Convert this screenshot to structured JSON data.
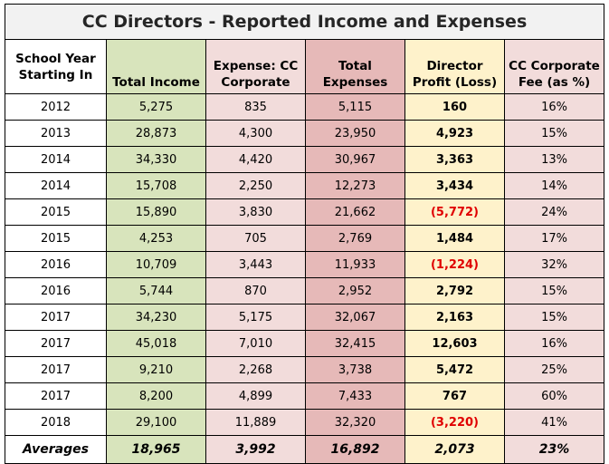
{
  "title": "CC Directors - Reported Income and Expenses",
  "headers": [
    "School Year Starting In",
    "Total Income",
    "Expense: CC Corporate",
    "Total Expenses",
    "Director Profit (Loss)",
    "CC Corporate Fee (as %)"
  ],
  "rows": [
    {
      "year": "2012",
      "income": "5,275",
      "cc_expense": "835",
      "total_expenses": "5,115",
      "profit": "160",
      "fee": "16%",
      "negative": false
    },
    {
      "year": "2013",
      "income": "28,873",
      "cc_expense": "4,300",
      "total_expenses": "23,950",
      "profit": "4,923",
      "fee": "15%",
      "negative": false
    },
    {
      "year": "2014",
      "income": "34,330",
      "cc_expense": "4,420",
      "total_expenses": "30,967",
      "profit": "3,363",
      "fee": "13%",
      "negative": false
    },
    {
      "year": "2014",
      "income": "15,708",
      "cc_expense": "2,250",
      "total_expenses": "12,273",
      "profit": "3,434",
      "fee": "14%",
      "negative": false
    },
    {
      "year": "2015",
      "income": "15,890",
      "cc_expense": "3,830",
      "total_expenses": "21,662",
      "profit": "(5,772)",
      "fee": "24%",
      "negative": true
    },
    {
      "year": "2015",
      "income": "4,253",
      "cc_expense": "705",
      "total_expenses": "2,769",
      "profit": "1,484",
      "fee": "17%",
      "negative": false
    },
    {
      "year": "2016",
      "income": "10,709",
      "cc_expense": "3,443",
      "total_expenses": "11,933",
      "profit": "(1,224)",
      "fee": "32%",
      "negative": true
    },
    {
      "year": "2016",
      "income": "5,744",
      "cc_expense": "870",
      "total_expenses": "2,952",
      "profit": "2,792",
      "fee": "15%",
      "negative": false
    },
    {
      "year": "2017",
      "income": "34,230",
      "cc_expense": "5,175",
      "total_expenses": "32,067",
      "profit": "2,163",
      "fee": "15%",
      "negative": false
    },
    {
      "year": "2017",
      "income": "45,018",
      "cc_expense": "7,010",
      "total_expenses": "32,415",
      "profit": "12,603",
      "fee": "16%",
      "negative": false
    },
    {
      "year": "2017",
      "income": "9,210",
      "cc_expense": "2,268",
      "total_expenses": "3,738",
      "profit": "5,472",
      "fee": "25%",
      "negative": false
    },
    {
      "year": "2017",
      "income": "8,200",
      "cc_expense": "4,899",
      "total_expenses": "7,433",
      "profit": "767",
      "fee": "60%",
      "negative": false
    },
    {
      "year": "2018",
      "income": "29,100",
      "cc_expense": "11,889",
      "total_expenses": "32,320",
      "profit": "(3,220)",
      "fee": "41%",
      "negative": true
    }
  ],
  "averages": {
    "label": "Averages",
    "income": "18,965",
    "cc_expense": "3,992",
    "total_expenses": "16,892",
    "profit": "2,073",
    "fee": "23%"
  },
  "colors": {
    "income": "#d8e4bc",
    "cc_expense": "#f2dcdb",
    "total_expenses": "#e6b9b8",
    "profit": "#fef2cb",
    "fee": "#f2dcdb",
    "negative_text": "#e00000"
  }
}
